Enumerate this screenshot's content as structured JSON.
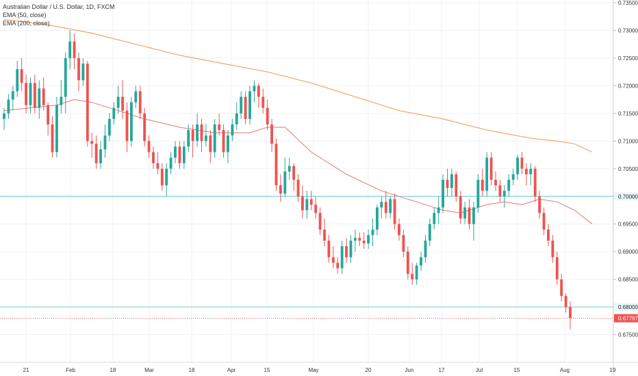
{
  "legend": {
    "symbol": "Australian Dollar / U.S. Dollar, 1D, FXCM",
    "ema50": "EMA (50, close)",
    "ema200": "EMA (200, close)"
  },
  "colors": {
    "up": "#26a69a",
    "down": "#ef5350",
    "ema50": "#e57373",
    "ema200": "#f4a460",
    "hline": "#7fd3db",
    "last_price_line": "#ef5350",
    "grid": "#eef0f3",
    "axis_text": "#333333"
  },
  "chart_data": {
    "type": "candlestick",
    "ylim": [
      0.67,
      0.7355
    ],
    "y_ticks": [
      "0.67500",
      "0.68000",
      "0.68500",
      "0.69000",
      "0.69500",
      "0.70000",
      "0.70500",
      "0.71000",
      "0.71500",
      "0.72000",
      "0.72500",
      "0.73000",
      "0.73500"
    ],
    "x_ticks": [
      "21",
      "Feb",
      "18",
      "Mar",
      "18",
      "Apr",
      "15",
      "May",
      "20",
      "Jun",
      "17",
      "Jul",
      "15",
      "Aug",
      "19"
    ],
    "horizontal_lines": [
      {
        "value": 0.7,
        "label": "0.70000"
      },
      {
        "value": 0.68,
        "label": "0.68000"
      }
    ],
    "last_price": {
      "value": 0.67797,
      "label": "0.67797"
    },
    "ohlc": [
      [
        0.714,
        0.716,
        0.712,
        0.715
      ],
      [
        0.715,
        0.7185,
        0.714,
        0.7175
      ],
      [
        0.7175,
        0.72,
        0.7155,
        0.719
      ],
      [
        0.719,
        0.7245,
        0.718,
        0.723
      ],
      [
        0.723,
        0.725,
        0.719,
        0.7205
      ],
      [
        0.7205,
        0.722,
        0.715,
        0.7165
      ],
      [
        0.7165,
        0.7215,
        0.715,
        0.7205
      ],
      [
        0.7205,
        0.722,
        0.715,
        0.716
      ],
      [
        0.716,
        0.721,
        0.714,
        0.7195
      ],
      [
        0.7195,
        0.7215,
        0.7155,
        0.7165
      ],
      [
        0.7165,
        0.717,
        0.711,
        0.713
      ],
      [
        0.713,
        0.7145,
        0.707,
        0.708
      ],
      [
        0.708,
        0.718,
        0.707,
        0.7165
      ],
      [
        0.7165,
        0.721,
        0.715,
        0.718
      ],
      [
        0.718,
        0.726,
        0.715,
        0.725
      ],
      [
        0.725,
        0.73,
        0.723,
        0.728
      ],
      [
        0.728,
        0.7295,
        0.723,
        0.725
      ],
      [
        0.725,
        0.726,
        0.719,
        0.721
      ],
      [
        0.721,
        0.725,
        0.72,
        0.724
      ],
      [
        0.724,
        0.7245,
        0.709,
        0.71
      ],
      [
        0.71,
        0.7115,
        0.707,
        0.7095
      ],
      [
        0.7095,
        0.711,
        0.705,
        0.706
      ],
      [
        0.706,
        0.71,
        0.705,
        0.7085
      ],
      [
        0.7085,
        0.713,
        0.707,
        0.711
      ],
      [
        0.711,
        0.715,
        0.71,
        0.714
      ],
      [
        0.714,
        0.717,
        0.713,
        0.716
      ],
      [
        0.716,
        0.72,
        0.715,
        0.718
      ],
      [
        0.718,
        0.721,
        0.714,
        0.7155
      ],
      [
        0.7155,
        0.717,
        0.708,
        0.71
      ],
      [
        0.71,
        0.718,
        0.709,
        0.717
      ],
      [
        0.717,
        0.72,
        0.716,
        0.719
      ],
      [
        0.719,
        0.72,
        0.714,
        0.715
      ],
      [
        0.715,
        0.716,
        0.709,
        0.71
      ],
      [
        0.71,
        0.711,
        0.707,
        0.708
      ],
      [
        0.708,
        0.709,
        0.705,
        0.706
      ],
      [
        0.706,
        0.708,
        0.704,
        0.705
      ],
      [
        0.705,
        0.706,
        0.701,
        0.702
      ],
      [
        0.702,
        0.706,
        0.7,
        0.705
      ],
      [
        0.705,
        0.708,
        0.704,
        0.707
      ],
      [
        0.707,
        0.71,
        0.706,
        0.709
      ],
      [
        0.709,
        0.71,
        0.705,
        0.706
      ],
      [
        0.706,
        0.71,
        0.705,
        0.709
      ],
      [
        0.709,
        0.713,
        0.708,
        0.712
      ],
      [
        0.712,
        0.713,
        0.707,
        0.71
      ],
      [
        0.71,
        0.715,
        0.709,
        0.713
      ],
      [
        0.713,
        0.714,
        0.708,
        0.71
      ],
      [
        0.71,
        0.713,
        0.709,
        0.711
      ],
      [
        0.711,
        0.712,
        0.706,
        0.708
      ],
      [
        0.708,
        0.714,
        0.707,
        0.713
      ],
      [
        0.713,
        0.715,
        0.711,
        0.712
      ],
      [
        0.712,
        0.713,
        0.707,
        0.708
      ],
      [
        0.708,
        0.712,
        0.706,
        0.711
      ],
      [
        0.711,
        0.714,
        0.71,
        0.713
      ],
      [
        0.713,
        0.717,
        0.712,
        0.715
      ],
      [
        0.715,
        0.719,
        0.714,
        0.718
      ],
      [
        0.718,
        0.719,
        0.713,
        0.714
      ],
      [
        0.714,
        0.72,
        0.713,
        0.719
      ],
      [
        0.719,
        0.721,
        0.717,
        0.72
      ],
      [
        0.72,
        0.7205,
        0.716,
        0.718
      ],
      [
        0.718,
        0.7195,
        0.715,
        0.716
      ],
      [
        0.716,
        0.7175,
        0.712,
        0.713
      ],
      [
        0.713,
        0.714,
        0.708,
        0.7095
      ],
      [
        0.7095,
        0.7105,
        0.701,
        0.702
      ],
      [
        0.702,
        0.704,
        0.699,
        0.7005
      ],
      [
        0.7005,
        0.707,
        0.7,
        0.7045
      ],
      [
        0.7045,
        0.707,
        0.703,
        0.7055
      ],
      [
        0.7055,
        0.706,
        0.701,
        0.703
      ],
      [
        0.703,
        0.704,
        0.699,
        0.7
      ],
      [
        0.7,
        0.702,
        0.696,
        0.6975
      ],
      [
        0.6975,
        0.701,
        0.696,
        0.6995
      ],
      [
        0.6995,
        0.701,
        0.6975,
        0.6985
      ],
      [
        0.6985,
        0.7,
        0.696,
        0.697
      ],
      [
        0.697,
        0.698,
        0.693,
        0.694
      ],
      [
        0.694,
        0.696,
        0.691,
        0.692
      ],
      [
        0.692,
        0.693,
        0.688,
        0.689
      ],
      [
        0.689,
        0.691,
        0.687,
        0.688
      ],
      [
        0.688,
        0.689,
        0.686,
        0.687
      ],
      [
        0.687,
        0.692,
        0.686,
        0.691
      ],
      [
        0.691,
        0.6925,
        0.688,
        0.689
      ],
      [
        0.689,
        0.693,
        0.688,
        0.692
      ],
      [
        0.692,
        0.694,
        0.69,
        0.6925
      ],
      [
        0.6925,
        0.6935,
        0.691,
        0.692
      ],
      [
        0.692,
        0.6935,
        0.6905,
        0.6915
      ],
      [
        0.6915,
        0.694,
        0.6905,
        0.693
      ],
      [
        0.693,
        0.696,
        0.691,
        0.694
      ],
      [
        0.694,
        0.6985,
        0.693,
        0.698
      ],
      [
        0.698,
        0.7,
        0.696,
        0.699
      ],
      [
        0.699,
        0.701,
        0.696,
        0.697
      ],
      [
        0.697,
        0.7,
        0.696,
        0.6995
      ],
      [
        0.6995,
        0.7005,
        0.694,
        0.695
      ],
      [
        0.695,
        0.696,
        0.692,
        0.693
      ],
      [
        0.693,
        0.694,
        0.689,
        0.69
      ],
      [
        0.69,
        0.691,
        0.685,
        0.686
      ],
      [
        0.686,
        0.688,
        0.684,
        0.685
      ],
      [
        0.685,
        0.688,
        0.684,
        0.6875
      ],
      [
        0.6875,
        0.69,
        0.6865,
        0.689
      ],
      [
        0.689,
        0.693,
        0.688,
        0.692
      ],
      [
        0.692,
        0.696,
        0.691,
        0.695
      ],
      [
        0.695,
        0.698,
        0.694,
        0.697
      ],
      [
        0.697,
        0.7,
        0.695,
        0.698
      ],
      [
        0.698,
        0.704,
        0.697,
        0.703
      ],
      [
        0.703,
        0.705,
        0.7,
        0.7015
      ],
      [
        0.7015,
        0.705,
        0.7,
        0.704
      ],
      [
        0.704,
        0.7045,
        0.699,
        0.7
      ],
      [
        0.7,
        0.701,
        0.695,
        0.696
      ],
      [
        0.696,
        0.699,
        0.695,
        0.698
      ],
      [
        0.698,
        0.6995,
        0.694,
        0.695
      ],
      [
        0.695,
        0.699,
        0.692,
        0.698
      ],
      [
        0.698,
        0.704,
        0.697,
        0.703
      ],
      [
        0.703,
        0.705,
        0.7,
        0.701
      ],
      [
        0.701,
        0.708,
        0.7,
        0.707
      ],
      [
        0.707,
        0.708,
        0.702,
        0.703
      ],
      [
        0.703,
        0.7045,
        0.701,
        0.702
      ],
      [
        0.702,
        0.703,
        0.699,
        0.7
      ],
      [
        0.7,
        0.702,
        0.698,
        0.701
      ],
      [
        0.701,
        0.704,
        0.7,
        0.703
      ],
      [
        0.703,
        0.705,
        0.702,
        0.704
      ],
      [
        0.704,
        0.7075,
        0.703,
        0.707
      ],
      [
        0.707,
        0.708,
        0.704,
        0.705
      ],
      [
        0.705,
        0.706,
        0.702,
        0.704
      ],
      [
        0.704,
        0.706,
        0.702,
        0.705
      ],
      [
        0.705,
        0.7055,
        0.699,
        0.7
      ],
      [
        0.7,
        0.701,
        0.696,
        0.697
      ],
      [
        0.697,
        0.698,
        0.693,
        0.694
      ],
      [
        0.694,
        0.695,
        0.691,
        0.692
      ],
      [
        0.692,
        0.693,
        0.688,
        0.689
      ],
      [
        0.689,
        0.69,
        0.684,
        0.685
      ],
      [
        0.685,
        0.686,
        0.681,
        0.682
      ],
      [
        0.682,
        0.6825,
        0.679,
        0.68
      ],
      [
        0.68,
        0.681,
        0.676,
        0.678
      ]
    ],
    "ema50": [
      [
        0,
        0.7155
      ],
      [
        6,
        0.716
      ],
      [
        12,
        0.7165
      ],
      [
        16,
        0.7175
      ],
      [
        20,
        0.717
      ],
      [
        26,
        0.7155
      ],
      [
        32,
        0.714
      ],
      [
        40,
        0.7125
      ],
      [
        48,
        0.7115
      ],
      [
        56,
        0.7115
      ],
      [
        60,
        0.7125
      ],
      [
        64,
        0.7125
      ],
      [
        70,
        0.708
      ],
      [
        78,
        0.704
      ],
      [
        86,
        0.701
      ],
      [
        92,
        0.6995
      ],
      [
        100,
        0.6975
      ],
      [
        104,
        0.697
      ],
      [
        110,
        0.6985
      ],
      [
        114,
        0.699
      ],
      [
        118,
        0.6985
      ],
      [
        122,
        0.6995
      ],
      [
        126,
        0.699
      ],
      [
        130,
        0.6975
      ],
      [
        134,
        0.695
      ]
    ],
    "ema200": [
      [
        0,
        0.732
      ],
      [
        10,
        0.731
      ],
      [
        20,
        0.7295
      ],
      [
        30,
        0.7275
      ],
      [
        40,
        0.7255
      ],
      [
        50,
        0.724
      ],
      [
        60,
        0.7225
      ],
      [
        70,
        0.7205
      ],
      [
        80,
        0.718
      ],
      [
        90,
        0.7155
      ],
      [
        100,
        0.714
      ],
      [
        110,
        0.712
      ],
      [
        120,
        0.7105
      ],
      [
        126,
        0.71
      ],
      [
        130,
        0.7095
      ],
      [
        134,
        0.708
      ]
    ]
  }
}
